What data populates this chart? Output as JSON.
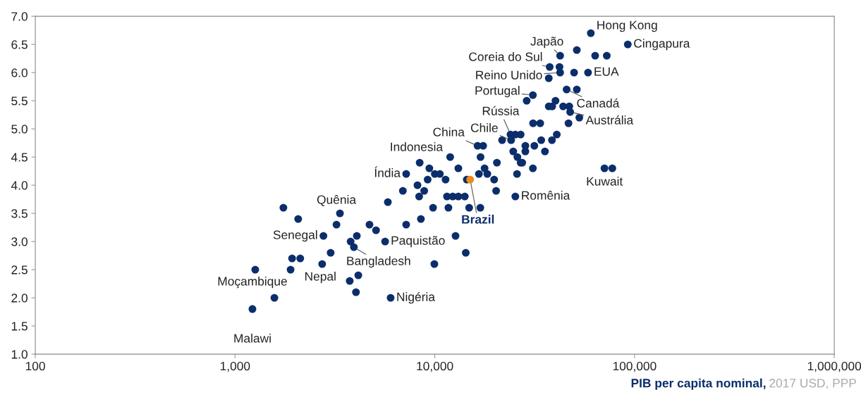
{
  "chart_data": {
    "type": "scatter",
    "xlabel": "PIB per capita nominal,",
    "log": "x",
    "grid": false,
    "legend": false,
    "marker": "circle",
    "xlim": [
      100,
      1000000
    ],
    "xticks": [
      {
        "value": 100,
        "label": "100"
      },
      {
        "value": 1000,
        "label": "1,000"
      },
      {
        "value": 10000,
        "label": "10,000"
      },
      {
        "value": 100000,
        "label": "100,000"
      },
      {
        "value": 1000000,
        "label": "1,000,000"
      }
    ],
    "ylim": [
      1.0,
      7.0
    ],
    "yticks": [
      {
        "value": 1.0,
        "label": "1.0"
      },
      {
        "value": 1.5,
        "label": "1.5"
      },
      {
        "value": 2.0,
        "label": "2.0"
      },
      {
        "value": 2.5,
        "label": "2.5"
      },
      {
        "value": 3.0,
        "label": "3.0"
      },
      {
        "value": 3.5,
        "label": "3.5"
      },
      {
        "value": 4.0,
        "label": "4.0"
      },
      {
        "value": 4.5,
        "label": "4.5"
      },
      {
        "value": 5.0,
        "label": "5.0"
      },
      {
        "value": 5.5,
        "label": "5.5"
      },
      {
        "value": 6.0,
        "label": "6.0"
      },
      {
        "value": 6.5,
        "label": "6.5"
      },
      {
        "value": 7.0,
        "label": "7.0"
      }
    ],
    "series": [
      {
        "color": "#0b2e6b",
        "x": [
          1746,
          2070,
          3350,
          3220,
          2770,
          4070,
          3790,
          3935,
          4710,
          5080,
          5640,
          5820,
          7190,
          8520,
          9800,
          9950,
          3010,
          1930,
          2120,
          1262,
          1897,
          2730,
          3750,
          4140,
          4030,
          1574,
          1222,
          6010,
          7190,
          8400,
          9390,
          10000,
          10600,
          9210,
          8190,
          6920,
          8850,
          8350,
          60400,
          92500,
          51400,
          42400,
          63500,
          72600,
          37600,
          42100,
          42400,
          37200,
          49800,
          58500,
          45700,
          51400,
          30980,
          28840,
          40200,
          37200,
          38700,
          43900,
          47100,
          47600,
          52900,
          46700,
          31050,
          33700,
          23930,
          25300,
          26900,
          40800,
          21730,
          24100,
          34100,
          38600,
          16370,
          17460,
          28400,
          31500,
          11940,
          16940,
          24700,
          28400,
          35600,
          25900,
          20460,
          26900,
          27400,
          13120,
          17750,
          30980,
          70700,
          77400,
          16630,
          18320,
          25800,
          11320,
          19820,
          14460,
          20280,
          25300,
          11510,
          12300,
          13120,
          14130,
          11700,
          14860,
          16900,
          12700,
          14290
        ],
        "values": [
          3.6,
          3.4,
          3.5,
          3.3,
          3.1,
          3.1,
          3.0,
          2.9,
          3.3,
          3.2,
          3.0,
          3.7,
          3.3,
          3.4,
          3.6,
          2.6,
          2.8,
          2.7,
          2.7,
          2.5,
          2.5,
          2.6,
          2.3,
          2.4,
          2.1,
          2.0,
          1.8,
          2.0,
          4.2,
          4.4,
          4.3,
          4.2,
          4.2,
          4.1,
          4.0,
          3.9,
          3.9,
          3.8,
          6.7,
          6.5,
          6.4,
          6.3,
          6.3,
          6.3,
          6.1,
          6.1,
          6.0,
          5.9,
          6.0,
          6.0,
          5.7,
          5.7,
          5.6,
          5.5,
          5.5,
          5.4,
          5.4,
          5.4,
          5.4,
          5.3,
          5.2,
          5.1,
          5.1,
          5.1,
          4.9,
          4.9,
          4.9,
          4.9,
          4.8,
          4.8,
          4.8,
          4.8,
          4.7,
          4.7,
          4.7,
          4.7,
          4.5,
          4.5,
          4.6,
          4.6,
          4.6,
          4.5,
          4.4,
          4.4,
          4.4,
          4.3,
          4.3,
          4.3,
          4.3,
          4.3,
          4.2,
          4.2,
          4.2,
          4.1,
          4.1,
          4.1,
          3.9,
          3.8,
          3.8,
          3.8,
          3.8,
          3.8,
          3.6,
          3.6,
          3.6,
          3.1,
          2.8
        ]
      },
      {
        "color": "#f08a1c",
        "x": [
          15030
        ],
        "values": [
          4.1
        ]
      }
    ],
    "annotations": [
      {
        "text": "Hong Kong",
        "x": 60400,
        "y": 6.7
      },
      {
        "text": "Cingapura",
        "x": 92500,
        "y": 6.5
      },
      {
        "text": "Japão",
        "x": 42400,
        "y": 6.3
      },
      {
        "text": "Coreia do Sul",
        "x": 37600,
        "y": 6.1
      },
      {
        "text": "Reino Unido",
        "x": 42400,
        "y": 6.0
      },
      {
        "text": "EUA",
        "x": 58500,
        "y": 6.0
      },
      {
        "text": "Portugal",
        "x": 30980,
        "y": 5.6
      },
      {
        "text": "Canadá",
        "x": 45700,
        "y": 5.7
      },
      {
        "text": "Austrália",
        "x": 47600,
        "y": 5.3
      },
      {
        "text": "Rússia",
        "x": 23930,
        "y": 4.9
      },
      {
        "text": "Chile",
        "x": 24100,
        "y": 4.8
      },
      {
        "text": "China",
        "x": 16370,
        "y": 4.7
      },
      {
        "text": "Indonesia",
        "x": 11940,
        "y": 4.5
      },
      {
        "text": "Índia",
        "x": 7190,
        "y": 4.2
      },
      {
        "text": "Brazil",
        "x": 15030,
        "y": 4.1
      },
      {
        "text": "Romênia",
        "x": 25300,
        "y": 3.8
      },
      {
        "text": "Kuwait",
        "x": 70700,
        "y": 4.3
      },
      {
        "text": "Quênia",
        "x": 3350,
        "y": 3.5
      },
      {
        "text": "Senegal",
        "x": 2770,
        "y": 3.1
      },
      {
        "text": "Paquistão",
        "x": 5640,
        "y": 3.0
      },
      {
        "text": "Bangladesh",
        "x": 3935,
        "y": 2.9
      },
      {
        "text": "Nepal",
        "x": 3750,
        "y": 2.3
      },
      {
        "text": "Moçambique",
        "x": 1262,
        "y": 2.5
      },
      {
        "text": "Malawi",
        "x": 1222,
        "y": 1.8
      },
      {
        "text": "Nigéria",
        "x": 6010,
        "y": 2.0
      },
      "2017 USD, PPP"
    ]
  }
}
